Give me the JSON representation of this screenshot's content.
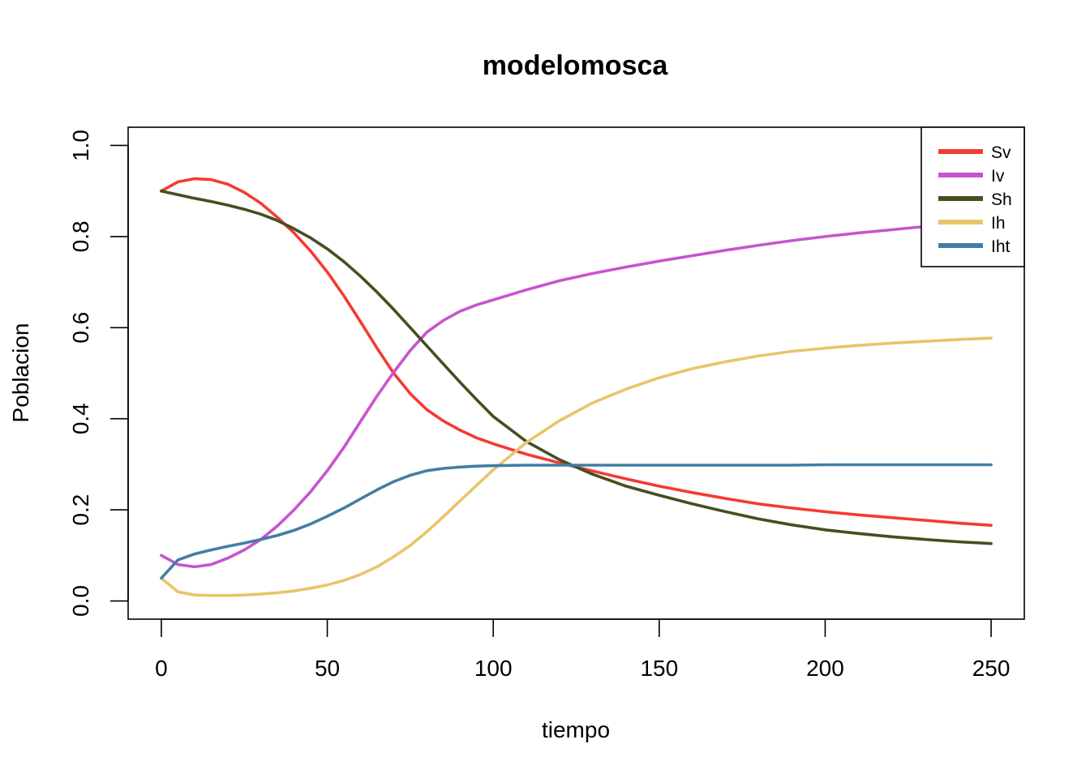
{
  "chart_data": {
    "type": "line",
    "title": "modelomosca",
    "xlabel": "tiempo",
    "ylabel": "Poblacion",
    "xlim": [
      -10,
      260
    ],
    "ylim": [
      -0.04,
      1.04
    ],
    "x_ticks": [
      0,
      50,
      100,
      150,
      200,
      250
    ],
    "y_ticks": [
      0.0,
      0.2,
      0.4,
      0.6,
      0.8,
      1.0
    ],
    "x_tick_labels": [
      "0",
      "50",
      "100",
      "150",
      "200",
      "250"
    ],
    "y_tick_labels": [
      "0.0",
      "0.2",
      "0.4",
      "0.6",
      "0.8",
      "1.0"
    ],
    "grid": false,
    "legend_position": "top-right",
    "x": [
      0,
      5,
      10,
      15,
      20,
      25,
      30,
      35,
      40,
      45,
      50,
      55,
      60,
      65,
      70,
      75,
      80,
      85,
      90,
      95,
      100,
      110,
      120,
      130,
      140,
      150,
      160,
      170,
      180,
      190,
      200,
      210,
      220,
      230,
      240,
      250
    ],
    "series": [
      {
        "name": "Sv",
        "color": "#f43b32",
        "values": [
          0.9,
          0.92,
          0.927,
          0.925,
          0.915,
          0.897,
          0.873,
          0.842,
          0.808,
          0.768,
          0.722,
          0.67,
          0.613,
          0.555,
          0.5,
          0.455,
          0.42,
          0.395,
          0.375,
          0.358,
          0.345,
          0.322,
          0.303,
          0.285,
          0.268,
          0.252,
          0.238,
          0.225,
          0.213,
          0.204,
          0.196,
          0.189,
          0.183,
          0.177,
          0.171,
          0.166
        ]
      },
      {
        "name": "Iv",
        "color": "#c754cf",
        "values": [
          0.1,
          0.08,
          0.075,
          0.08,
          0.094,
          0.112,
          0.135,
          0.165,
          0.2,
          0.24,
          0.286,
          0.337,
          0.394,
          0.45,
          0.502,
          0.55,
          0.59,
          0.616,
          0.636,
          0.65,
          0.661,
          0.683,
          0.703,
          0.719,
          0.733,
          0.746,
          0.758,
          0.77,
          0.781,
          0.791,
          0.8,
          0.808,
          0.815,
          0.822,
          0.828,
          0.834
        ]
      },
      {
        "name": "Sh",
        "color": "#435020",
        "values": [
          0.9,
          0.892,
          0.884,
          0.877,
          0.869,
          0.86,
          0.849,
          0.835,
          0.817,
          0.797,
          0.773,
          0.745,
          0.713,
          0.678,
          0.64,
          0.6,
          0.56,
          0.52,
          0.48,
          0.442,
          0.405,
          0.35,
          0.31,
          0.278,
          0.252,
          0.232,
          0.213,
          0.196,
          0.18,
          0.167,
          0.156,
          0.148,
          0.141,
          0.135,
          0.13,
          0.126
        ]
      },
      {
        "name": "Ih",
        "color": "#e9c46a",
        "values": [
          0.05,
          0.02,
          0.013,
          0.012,
          0.012,
          0.013,
          0.015,
          0.018,
          0.022,
          0.028,
          0.035,
          0.045,
          0.058,
          0.075,
          0.097,
          0.122,
          0.152,
          0.185,
          0.22,
          0.254,
          0.288,
          0.348,
          0.396,
          0.435,
          0.465,
          0.49,
          0.51,
          0.525,
          0.538,
          0.548,
          0.555,
          0.561,
          0.566,
          0.57,
          0.574,
          0.577
        ]
      },
      {
        "name": "Iht",
        "color": "#427ea5",
        "values": [
          0.05,
          0.09,
          0.103,
          0.112,
          0.12,
          0.127,
          0.135,
          0.144,
          0.155,
          0.169,
          0.186,
          0.204,
          0.224,
          0.244,
          0.262,
          0.276,
          0.286,
          0.291,
          0.294,
          0.296,
          0.297,
          0.298,
          0.298,
          0.298,
          0.298,
          0.298,
          0.298,
          0.298,
          0.298,
          0.298,
          0.299,
          0.299,
          0.299,
          0.299,
          0.299,
          0.299
        ]
      }
    ]
  }
}
